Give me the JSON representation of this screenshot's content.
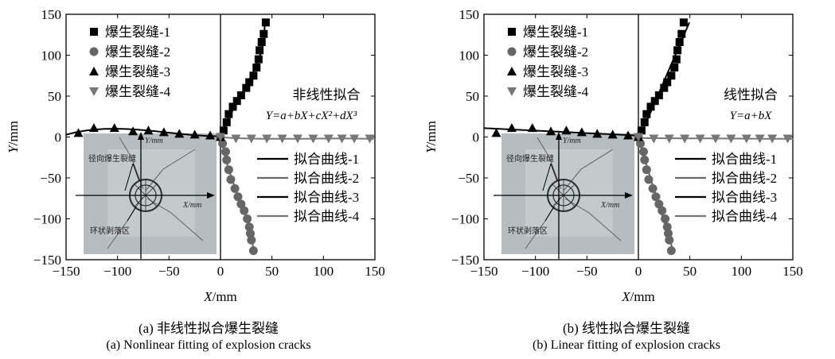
{
  "chart_data": [
    {
      "type": "scatter",
      "caption_cn": "(a) 非线性拟合爆生裂缝",
      "caption_en": "(a) Nonlinear fitting of explosion cracks",
      "xlabel": "X/mm",
      "ylabel": "Y/mm",
      "xlim": [
        -150,
        150
      ],
      "ylim": [
        -150,
        150
      ],
      "xticks": [
        -150,
        -100,
        -50,
        0,
        50,
        100,
        150
      ],
      "yticks": [
        -150,
        -100,
        -50,
        0,
        50,
        100,
        150
      ],
      "fit_title": "非线性拟合",
      "fit_formula": "Y=a+bX+cX²+dX³",
      "inset_labels": {
        "radial": "径向爆生裂缝",
        "ring": "环状剥落区",
        "y_axis": "Y/mm",
        "x_axis": "X/mm"
      },
      "series": [
        {
          "name": "爆生裂缝-1",
          "marker": "square",
          "color": "#000000",
          "points": [
            [
              0,
              0
            ],
            [
              3,
              8
            ],
            [
              6,
              18
            ],
            [
              8,
              28
            ],
            [
              12,
              37
            ],
            [
              16,
              44
            ],
            [
              20,
              51
            ],
            [
              25,
              60
            ],
            [
              28,
              67
            ],
            [
              32,
              75
            ],
            [
              35,
              85
            ],
            [
              37,
              95
            ],
            [
              38,
              106
            ],
            [
              40,
              116
            ],
            [
              42,
              126
            ],
            [
              44,
              140
            ]
          ]
        },
        {
          "name": "爆生裂缝-2",
          "marker": "circle",
          "color": "#666666",
          "points": [
            [
              0,
              0
            ],
            [
              2,
              -8
            ],
            [
              5,
              -18
            ],
            [
              6,
              -28
            ],
            [
              8,
              -40
            ],
            [
              10,
              -52
            ],
            [
              14,
              -63
            ],
            [
              17,
              -73
            ],
            [
              20,
              -82
            ],
            [
              23,
              -90
            ],
            [
              26,
              -100
            ],
            [
              28,
              -110
            ],
            [
              29,
              -118
            ],
            [
              30,
              -126
            ],
            [
              32,
              -139
            ]
          ]
        },
        {
          "name": "爆生裂缝-3",
          "marker": "triangle",
          "color": "#000000",
          "points": [
            [
              -138,
              5
            ],
            [
              -123,
              11
            ],
            [
              -103,
              11
            ],
            [
              -85,
              7
            ],
            [
              -70,
              8
            ],
            [
              -55,
              6
            ],
            [
              -40,
              4
            ],
            [
              -25,
              3
            ],
            [
              -10,
              2
            ],
            [
              0,
              0
            ]
          ]
        },
        {
          "name": "爆生裂缝-4",
          "marker": "triangle-down",
          "color": "#777777",
          "points": [
            [
              0,
              0
            ],
            [
              15,
              -2
            ],
            [
              30,
              -2
            ],
            [
              45,
              -2
            ],
            [
              60,
              -2
            ],
            [
              75,
              -2
            ],
            [
              90,
              -2
            ],
            [
              105,
              -2
            ],
            [
              118,
              -2
            ],
            [
              130,
              -2
            ],
            [
              145,
              -2
            ]
          ]
        }
      ],
      "fits": [
        {
          "name": "拟合曲线-1",
          "color": "#000000"
        },
        {
          "name": "拟合曲线-2",
          "color": "#666666"
        },
        {
          "name": "拟合曲线-3",
          "color": "#000000"
        },
        {
          "name": "拟合曲线-4",
          "color": "#777777"
        }
      ]
    },
    {
      "type": "scatter",
      "caption_cn": "(b) 线性拟合爆生裂缝",
      "caption_en": "(b) Linear fitting of explosion cracks",
      "xlabel": "X/mm",
      "ylabel": "Y/mm",
      "xlim": [
        -150,
        150
      ],
      "ylim": [
        -150,
        150
      ],
      "xticks": [
        -150,
        -100,
        -50,
        0,
        50,
        100,
        150
      ],
      "yticks": [
        -150,
        -100,
        -50,
        0,
        50,
        100,
        150
      ],
      "fit_title": "线性拟合",
      "fit_formula": "Y=a+bX",
      "inset_labels": {
        "radial": "径向爆生裂缝",
        "ring": "环状剥落区",
        "y_axis": "Y/mm",
        "x_axis": "X/mm"
      },
      "series": [
        {
          "name": "爆生裂缝-1",
          "marker": "square",
          "color": "#000000",
          "points": [
            [
              0,
              0
            ],
            [
              3,
              8
            ],
            [
              6,
              18
            ],
            [
              8,
              28
            ],
            [
              12,
              37
            ],
            [
              16,
              44
            ],
            [
              20,
              51
            ],
            [
              25,
              60
            ],
            [
              28,
              67
            ],
            [
              32,
              75
            ],
            [
              35,
              85
            ],
            [
              37,
              95
            ],
            [
              38,
              106
            ],
            [
              40,
              116
            ],
            [
              42,
              126
            ],
            [
              44,
              140
            ]
          ]
        },
        {
          "name": "爆生裂缝-2",
          "marker": "circle",
          "color": "#666666",
          "points": [
            [
              0,
              0
            ],
            [
              2,
              -8
            ],
            [
              5,
              -18
            ],
            [
              6,
              -28
            ],
            [
              8,
              -40
            ],
            [
              10,
              -52
            ],
            [
              14,
              -63
            ],
            [
              17,
              -73
            ],
            [
              20,
              -82
            ],
            [
              23,
              -90
            ],
            [
              26,
              -100
            ],
            [
              28,
              -110
            ],
            [
              29,
              -118
            ],
            [
              30,
              -126
            ],
            [
              32,
              -139
            ]
          ]
        },
        {
          "name": "爆生裂缝-3",
          "marker": "triangle",
          "color": "#000000",
          "points": [
            [
              -138,
              5
            ],
            [
              -123,
              11
            ],
            [
              -103,
              11
            ],
            [
              -85,
              7
            ],
            [
              -70,
              8
            ],
            [
              -55,
              6
            ],
            [
              -40,
              4
            ],
            [
              -25,
              3
            ],
            [
              -10,
              2
            ],
            [
              0,
              0
            ]
          ]
        },
        {
          "name": "爆生裂缝-4",
          "marker": "triangle-down",
          "color": "#777777",
          "points": [
            [
              0,
              0
            ],
            [
              15,
              -2
            ],
            [
              30,
              -2
            ],
            [
              45,
              -2
            ],
            [
              60,
              -2
            ],
            [
              75,
              -2
            ],
            [
              90,
              -2
            ],
            [
              105,
              -2
            ],
            [
              118,
              -2
            ],
            [
              130,
              -2
            ],
            [
              145,
              -2
            ]
          ]
        }
      ],
      "fits": [
        {
          "name": "拟合曲线-1",
          "color": "#000000"
        },
        {
          "name": "拟合曲线-2",
          "color": "#666666"
        },
        {
          "name": "拟合曲线-3",
          "color": "#000000"
        },
        {
          "name": "拟合曲线-4",
          "color": "#777777"
        }
      ]
    }
  ]
}
